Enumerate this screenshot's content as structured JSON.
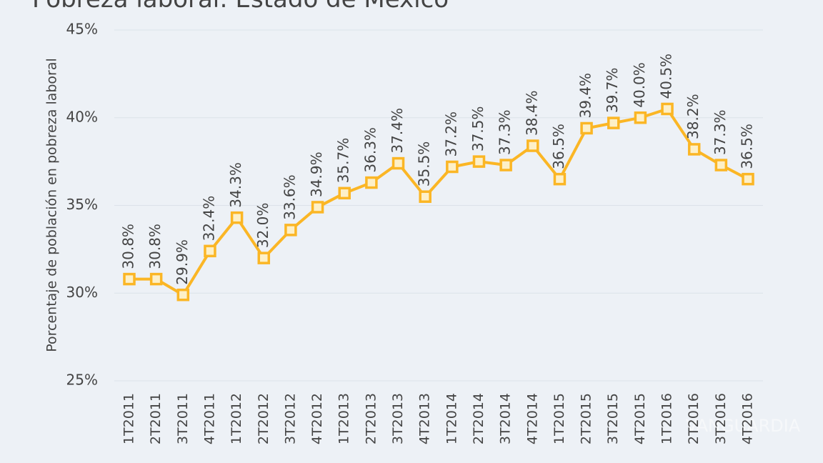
{
  "chart_data": {
    "type": "line",
    "title": "Pobreza laboral: Estado de México",
    "y_label": "Porcentaje de población en pobreza laboral",
    "watermark": "VANGUARDIA",
    "categories": [
      "1T2011",
      "2T2011",
      "3T2011",
      "4T2011",
      "1T2012",
      "2T2012",
      "3T2012",
      "4T2012",
      "1T2013",
      "2T2013",
      "3T2013",
      "4T2013",
      "1T2014",
      "2T2014",
      "3T2014",
      "4T2014",
      "1T2015",
      "2T2015",
      "3T2015",
      "4T2015",
      "1T2016",
      "2T2016",
      "3T2016",
      "4T2016"
    ],
    "series": [
      {
        "color": "#fbb625",
        "values": [
          30.8,
          30.8,
          29.9,
          32.4,
          34.3,
          32.0,
          33.6,
          34.9,
          35.7,
          36.3,
          37.4,
          35.5,
          37.2,
          37.5,
          37.3,
          38.4,
          36.5,
          39.4,
          39.7,
          40.0,
          40.5,
          38.2,
          37.3,
          36.5
        ],
        "value_labels": [
          "30.8%",
          "30.8%",
          "29.9%",
          "32.4%",
          "34.3%",
          "32.0%",
          "33.6%",
          "34.9%",
          "35.7%",
          "36.3%",
          "37.4%",
          "35.5%",
          "37.2%",
          "37.5%",
          "37.3%",
          "38.4%",
          "36.5%",
          "39.4%",
          "39.7%",
          "40.0%",
          "40.5%",
          "38.2%",
          "37.3%",
          "36.5%"
        ]
      }
    ],
    "ylim": [
      25,
      45
    ],
    "yticks": [
      {
        "value": 25,
        "label": "25%"
      },
      {
        "value": 30,
        "label": "30%"
      },
      {
        "value": 35,
        "label": "35%"
      },
      {
        "value": 40,
        "label": "40%"
      },
      {
        "value": 45,
        "label": "45%"
      }
    ],
    "grid": true
  }
}
